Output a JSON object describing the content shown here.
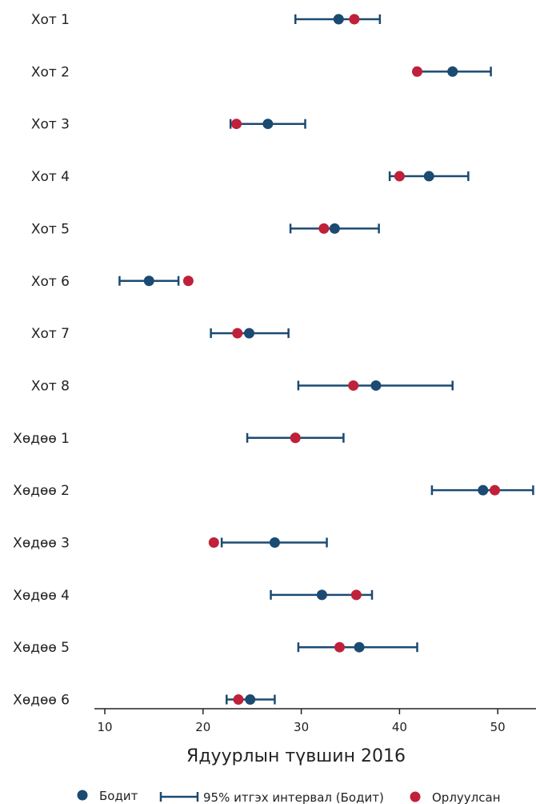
{
  "chart_data": {
    "type": "dot-errorbar",
    "categories": [
      "Хот 1",
      "Хот 2",
      "Хот 3",
      "Хот 4",
      "Хот 5",
      "Хот 6",
      "Хот 7",
      "Хот 8",
      "Хөдөө 1",
      "Хөдөө 2",
      "Хөдөө 3",
      "Хөдөө 4",
      "Хөдөө 5",
      "Хөдөө 6"
    ],
    "series": [
      {
        "name": "Бодит",
        "color": "#1b4a72",
        "values": [
          33.8,
          45.4,
          26.6,
          43.0,
          33.4,
          14.5,
          24.7,
          37.6,
          29.4,
          48.5,
          27.3,
          32.1,
          35.9,
          24.8
        ]
      },
      {
        "name": "Орлуулсан",
        "color": "#c0203a",
        "values": [
          35.4,
          41.8,
          23.4,
          40.0,
          32.3,
          18.5,
          23.5,
          35.3,
          29.4,
          49.7,
          21.1,
          35.6,
          33.9,
          23.6
        ]
      }
    ],
    "ci": {
      "name": "95% итгэх интервал (Бодит)",
      "color": "#1b4a72",
      "lower": [
        29.4,
        41.6,
        22.8,
        39.0,
        28.9,
        11.5,
        20.8,
        29.7,
        24.5,
        43.3,
        21.9,
        26.9,
        29.7,
        22.4
      ],
      "upper": [
        38.0,
        49.3,
        30.4,
        47.0,
        37.9,
        17.5,
        28.7,
        45.4,
        34.3,
        53.6,
        32.6,
        37.2,
        41.8,
        27.3
      ]
    },
    "xlabel": "Ядуурлын түвшин 2016",
    "xlim": [
      9,
      54
    ],
    "xticks": [
      10,
      20,
      30,
      40,
      50
    ],
    "legend_position": "bottom"
  }
}
